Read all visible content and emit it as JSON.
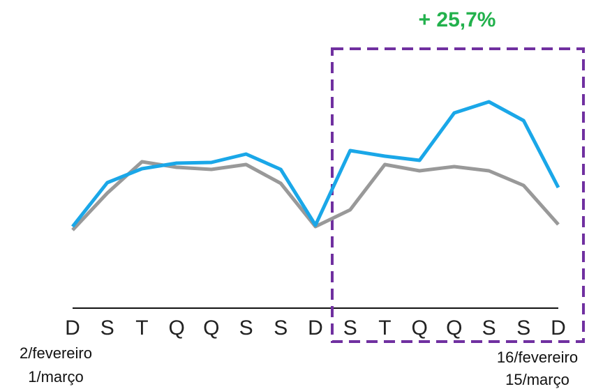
{
  "chart_data": {
    "type": "line",
    "annotation": "+ 25,7%",
    "categories": [
      "D",
      "S",
      "T",
      "Q",
      "Q",
      "S",
      "S",
      "D",
      "S",
      "T",
      "Q",
      "Q",
      "S",
      "S",
      "D"
    ],
    "start_dates": [
      "2/fevereiro",
      "1/março"
    ],
    "end_dates": [
      "16/fevereiro",
      "15/março"
    ],
    "series": [
      {
        "color": "#999999",
        "values": [
          28,
          41.25,
          52.5,
          50.5,
          49.75,
          51.5,
          44.75,
          29.25,
          35.25,
          51.5,
          49.25,
          50.75,
          49.25,
          44,
          30
        ]
      },
      {
        "color": "#1aa7e8",
        "values": [
          29.25,
          45,
          50,
          52,
          52.25,
          55.25,
          49.75,
          29.75,
          56.5,
          54.5,
          53,
          70,
          74,
          67.25,
          43.25
        ]
      }
    ],
    "ylim": [
      0,
      100
    ]
  }
}
